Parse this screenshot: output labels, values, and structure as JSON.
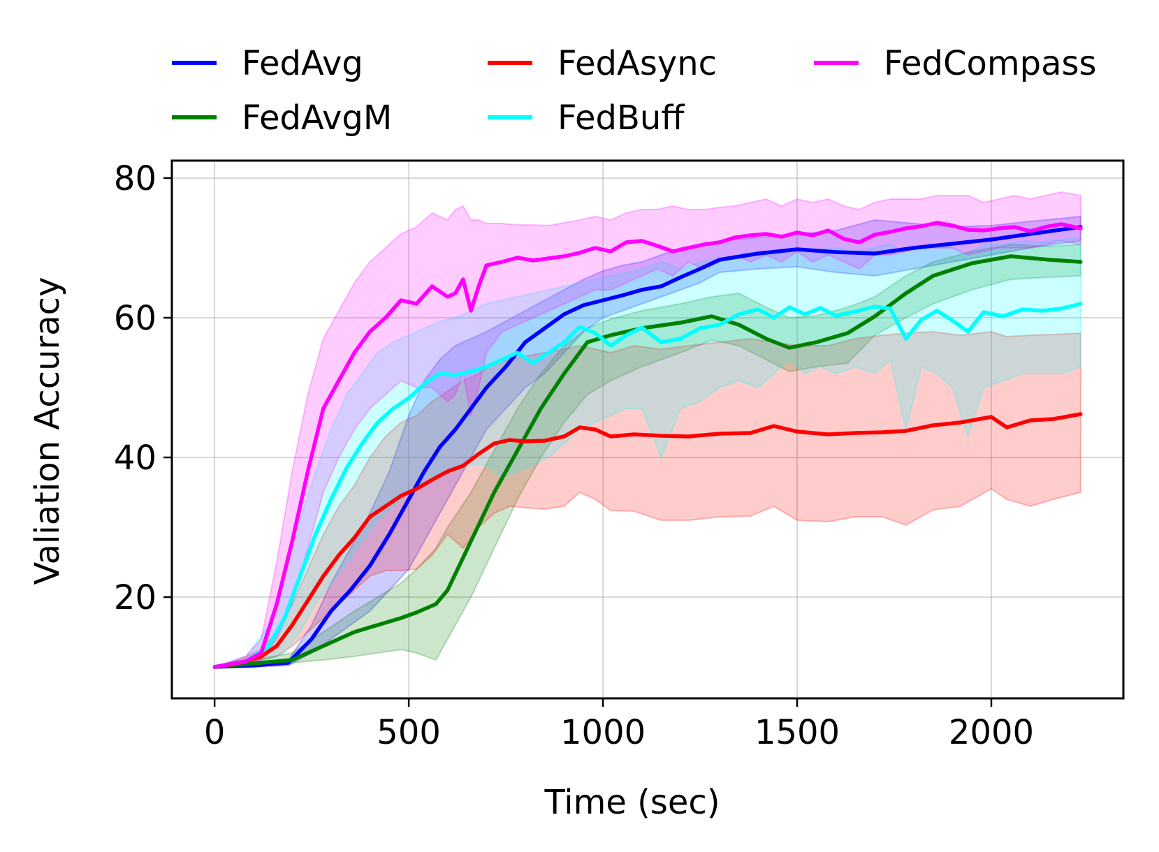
{
  "chart_data": {
    "type": "line",
    "title": "",
    "xlabel": "Time (sec)",
    "ylabel": "Valiation Accuracy",
    "xlim": [
      -110,
      2340
    ],
    "ylim": [
      5.5,
      82.5
    ],
    "xticks": [
      0,
      500,
      1000,
      1500,
      2000
    ],
    "yticks": [
      20,
      40,
      60,
      80
    ],
    "xtick_labels": [
      "0",
      "500",
      "1000",
      "1500",
      "2000"
    ],
    "ytick_labels": [
      "20",
      "40",
      "60",
      "80"
    ],
    "grid": true,
    "legend_position": "top, above plot, 3 columns",
    "series": [
      {
        "name": "FedAvg",
        "color": "#0000ff",
        "x": [
          0,
          100,
          190,
          250,
          300,
          350,
          400,
          450,
          500,
          540,
          580,
          620,
          660,
          700,
          750,
          800,
          850,
          900,
          950,
          1000,
          1050,
          1100,
          1150,
          1200,
          1250,
          1300,
          1400,
          1500,
          1600,
          1700,
          1800,
          1900,
          2000,
          2100,
          2230
        ],
        "y": [
          10,
          10.2,
          10.6,
          14,
          18,
          21,
          24.5,
          29,
          34,
          38,
          41.5,
          44,
          47,
          50,
          53,
          56.5,
          58.5,
          60.5,
          61.8,
          62.5,
          63.2,
          64,
          64.5,
          65.8,
          67,
          68.3,
          69.2,
          69.8,
          69.4,
          69.2,
          70,
          70.6,
          71.2,
          72,
          73
        ],
        "lower": [
          10,
          10,
          10.2,
          12,
          14,
          16,
          18,
          21,
          24,
          28,
          32,
          36,
          40,
          44,
          47,
          50,
          52,
          55,
          58,
          60,
          61,
          62,
          63,
          64,
          65,
          66.5,
          67,
          67.3,
          66.5,
          66,
          67,
          68,
          69,
          70,
          71
        ],
        "upper": [
          10,
          10.5,
          11,
          16,
          22,
          27,
          32,
          38,
          46,
          51,
          54,
          56,
          57,
          58,
          59.5,
          61,
          62.5,
          64,
          65.5,
          66.7,
          67.5,
          68,
          69,
          70,
          70.5,
          71,
          71.5,
          72,
          72.5,
          74,
          73.5,
          73,
          73.2,
          73.8,
          74.5
        ]
      },
      {
        "name": "FedAvgM",
        "color": "#008000",
        "x": [
          0,
          100,
          200,
          280,
          360,
          420,
          480,
          520,
          570,
          600,
          660,
          720,
          780,
          840,
          900,
          960,
          1020,
          1100,
          1200,
          1280,
          1350,
          1420,
          1480,
          1550,
          1630,
          1700,
          1780,
          1850,
          1950,
          2050,
          2150,
          2230
        ],
        "y": [
          10,
          10.5,
          11,
          13,
          15,
          16,
          17,
          17.8,
          19,
          21,
          28,
          35,
          41,
          47,
          52,
          56.5,
          57.5,
          58.5,
          59.3,
          60.2,
          59,
          57,
          55.7,
          56.5,
          57.8,
          60.2,
          63.5,
          66,
          67.8,
          68.8,
          68.3,
          68
        ],
        "lower": [
          10,
          10.2,
          10.6,
          11,
          11.5,
          12,
          12.5,
          12,
          11,
          14,
          20,
          27,
          34,
          40,
          45,
          49,
          51,
          53,
          55,
          56.8,
          56,
          54,
          52.3,
          53,
          53.5,
          57.5,
          60,
          62,
          64,
          65.5,
          65.8,
          66
        ],
        "upper": [
          10,
          11,
          12,
          15,
          18,
          20,
          22,
          24,
          27,
          30,
          35,
          41,
          47,
          52,
          56,
          58.5,
          59.8,
          61,
          62,
          63,
          63.5,
          61.5,
          60,
          60.3,
          61.5,
          63,
          66,
          68,
          69.5,
          70.5,
          70.2,
          70.5
        ]
      },
      {
        "name": "FedAsync",
        "color": "#ff0000",
        "x": [
          0,
          60,
          120,
          160,
          200,
          240,
          280,
          320,
          360,
          400,
          440,
          480,
          520,
          560,
          600,
          640,
          680,
          720,
          760,
          800,
          850,
          900,
          940,
          980,
          1020,
          1080,
          1150,
          1220,
          1300,
          1380,
          1440,
          1500,
          1580,
          1650,
          1720,
          1780,
          1850,
          1920,
          2000,
          2040,
          2100,
          2160,
          2230
        ],
        "y": [
          10,
          10.5,
          11.5,
          13,
          16,
          19.5,
          23,
          26,
          28.5,
          31.5,
          33,
          34.5,
          35.5,
          36.8,
          38,
          38.8,
          40.5,
          42,
          42.5,
          42.3,
          42.4,
          43,
          44.3,
          44,
          43,
          43.3,
          43.1,
          43,
          43.4,
          43.5,
          44.5,
          43.7,
          43.3,
          43.5,
          43.6,
          43.8,
          44.6,
          45,
          45.8,
          44.3,
          45.3,
          45.5,
          46.2
        ],
        "lower": [
          10,
          10.3,
          11,
          11.5,
          13,
          15,
          17,
          19,
          21,
          23,
          23.8,
          23.8,
          24,
          26,
          29,
          27,
          30,
          32,
          33,
          32.8,
          32.6,
          33,
          35,
          34,
          32.4,
          32.3,
          31,
          31,
          31.5,
          31.6,
          33,
          31,
          30.8,
          31.5,
          31.5,
          30.3,
          32.5,
          33,
          35.5,
          34,
          33,
          34,
          35
        ],
        "upper": [
          10,
          11,
          12.5,
          15,
          19,
          24,
          29,
          33,
          36,
          40,
          43,
          45,
          46,
          48,
          49.5,
          51,
          52,
          53.5,
          54,
          54.5,
          55,
          55.5,
          56,
          55.5,
          55,
          56,
          55.5,
          56,
          56.5,
          57,
          56.5,
          56,
          56,
          57,
          57.5,
          57.8,
          58,
          57.5,
          58,
          57.3,
          57.5,
          57.6,
          57.8
        ]
      },
      {
        "name": "FedBuff",
        "color": "#00ffff",
        "x": [
          0,
          80,
          140,
          180,
          220,
          260,
          300,
          340,
          380,
          420,
          460,
          500,
          540,
          580,
          620,
          660,
          700,
          740,
          780,
          820,
          860,
          900,
          940,
          980,
          1020,
          1060,
          1100,
          1150,
          1200,
          1250,
          1300,
          1350,
          1400,
          1440,
          1480,
          1520,
          1560,
          1600,
          1650,
          1700,
          1740,
          1780,
          1820,
          1860,
          1900,
          1940,
          1980,
          2030,
          2080,
          2130,
          2180,
          2230
        ],
        "y": [
          10,
          10.8,
          13,
          17,
          23,
          29,
          34,
          38.5,
          42,
          45,
          47,
          48.5,
          50.5,
          52,
          51.8,
          52.3,
          53,
          54,
          55,
          53.5,
          55,
          56.5,
          58.7,
          57.8,
          56,
          57.5,
          58.6,
          56.5,
          57,
          58.5,
          59,
          60.5,
          61.2,
          60,
          61.5,
          60.5,
          61.4,
          60.3,
          60.9,
          61.6,
          61.3,
          57,
          59.7,
          61,
          59.6,
          58,
          60.8,
          60.2,
          61.2,
          61,
          61.3,
          62
        ],
        "lower": [
          10,
          10.3,
          11,
          12,
          15,
          19,
          22,
          25,
          28,
          31,
          33,
          35,
          36,
          38,
          38,
          39,
          39,
          37,
          38,
          39,
          40,
          42,
          44,
          45,
          46,
          47,
          47,
          40,
          47,
          48,
          50,
          51,
          50,
          52,
          54,
          52,
          53,
          52,
          53,
          52,
          54,
          44,
          53,
          52,
          50,
          43,
          50,
          51,
          52,
          52,
          52,
          53
        ],
        "upper": [
          10,
          11.5,
          16,
          23,
          31,
          38,
          44,
          49,
          52,
          55,
          56.5,
          57.5,
          58.5,
          59.5,
          60,
          61,
          62,
          62.5,
          63,
          63.5,
          64,
          64.5,
          65,
          65.5,
          66,
          66.5,
          67,
          68,
          67,
          68,
          68.5,
          69,
          69.5,
          69,
          70,
          69.5,
          69.8,
          70,
          69.5,
          70,
          70.5,
          69,
          70,
          70.5,
          70,
          69,
          70.5,
          70.5,
          71,
          70.8,
          71.2,
          71.5
        ]
      },
      {
        "name": "FedCompass",
        "color": "#ff00ff",
        "x": [
          0,
          80,
          120,
          160,
          200,
          240,
          280,
          320,
          360,
          400,
          440,
          480,
          520,
          560,
          600,
          620,
          640,
          660,
          680,
          700,
          740,
          780,
          820,
          860,
          900,
          940,
          980,
          1020,
          1060,
          1100,
          1140,
          1180,
          1220,
          1260,
          1300,
          1340,
          1380,
          1420,
          1460,
          1500,
          1540,
          1580,
          1620,
          1660,
          1700,
          1740,
          1780,
          1820,
          1860,
          1900,
          1940,
          1980,
          2020,
          2060,
          2100,
          2140,
          2180,
          2230
        ],
        "y": [
          10,
          10.8,
          12,
          19,
          28,
          38,
          47,
          51,
          55,
          58,
          60,
          62.5,
          62,
          64.5,
          63,
          63.5,
          65.5,
          61,
          64.5,
          67.5,
          68,
          68.6,
          68.2,
          68.5,
          68.8,
          69.3,
          70,
          69.5,
          70.8,
          71,
          70.3,
          69.5,
          70,
          70.5,
          70.8,
          71.5,
          71.8,
          72,
          71.6,
          72.2,
          71.8,
          72.5,
          71.3,
          70.8,
          71.9,
          72.3,
          72.8,
          73.1,
          73.6,
          73.2,
          72.6,
          72.5,
          72.8,
          73,
          72.4,
          73,
          73.4,
          72.8
        ],
        "lower": [
          10,
          10.5,
          11,
          14,
          19,
          27,
          35,
          40,
          44,
          47,
          49,
          51,
          50,
          50,
          48,
          49,
          52,
          46,
          50,
          55,
          58,
          59,
          60,
          61,
          62,
          63,
          64,
          64,
          65,
          66,
          67,
          66,
          68,
          67,
          68,
          69,
          68,
          69,
          68,
          69.5,
          68,
          69,
          68,
          67,
          69,
          69,
          69.5,
          70,
          70,
          70,
          69,
          69.5,
          70,
          70,
          70,
          70.5,
          71,
          70.5
        ],
        "upper": [
          10,
          11.5,
          14,
          25,
          38,
          49,
          57,
          61,
          65,
          68,
          70,
          72,
          73,
          75,
          74,
          75.5,
          76,
          74,
          74,
          73.5,
          73.5,
          73.3,
          73.3,
          73.2,
          73.6,
          74,
          74.5,
          74,
          75,
          75.5,
          75.5,
          76,
          75.5,
          75.5,
          75.8,
          76,
          76.5,
          77,
          76,
          77,
          76.5,
          77,
          76,
          75.5,
          76.5,
          77,
          77,
          77,
          77.5,
          77.5,
          77.5,
          76.5,
          77,
          77.5,
          77,
          77.5,
          78,
          77.5
        ]
      }
    ]
  }
}
